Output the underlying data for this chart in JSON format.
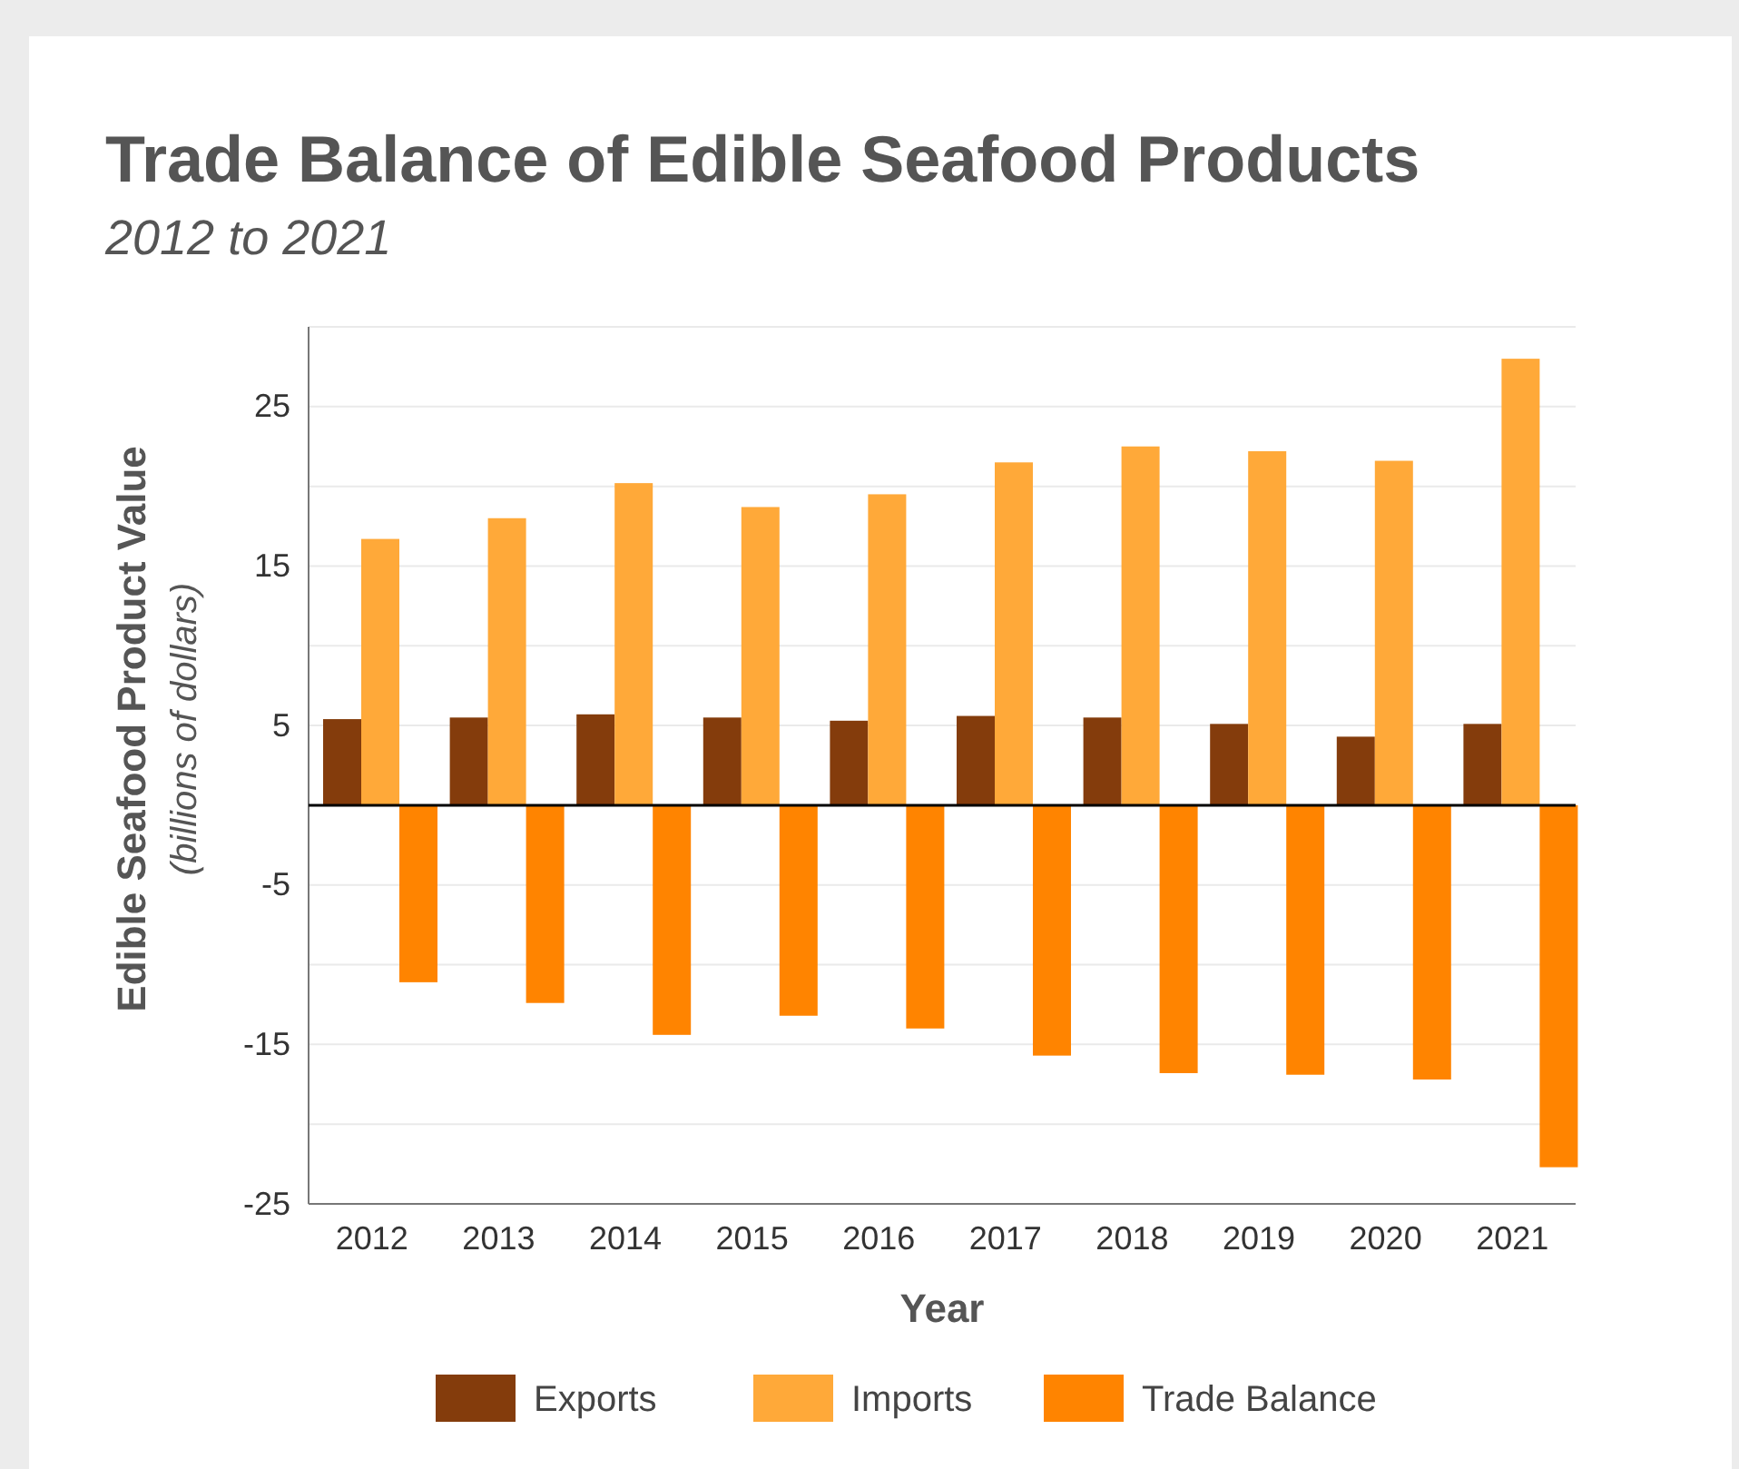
{
  "chart_data": {
    "type": "bar",
    "title": "Trade Balance of Edible Seafood Products",
    "subtitle": "2012 to 2021",
    "xlabel": "Year",
    "ylabel": "Edible Seafood Product Value",
    "y2label": "(billions of dollars)",
    "categories": [
      "2012",
      "2013",
      "2014",
      "2015",
      "2016",
      "2017",
      "2018",
      "2019",
      "2020",
      "2021"
    ],
    "series": [
      {
        "name": "Exports",
        "color": "#843c0c",
        "values": [
          5.4,
          5.5,
          5.7,
          5.5,
          5.3,
          5.6,
          5.5,
          5.1,
          4.3,
          5.1
        ]
      },
      {
        "name": "Imports",
        "color": "#ffa939",
        "values": [
          16.7,
          18.0,
          20.2,
          18.7,
          19.5,
          21.5,
          22.5,
          22.2,
          21.6,
          28.0
        ]
      },
      {
        "name": "Trade Balance",
        "color": "#ff8400",
        "values": [
          -11.1,
          -12.4,
          -14.4,
          -13.2,
          -14.0,
          -15.7,
          -16.8,
          -16.9,
          -17.2,
          -22.7
        ]
      }
    ],
    "ylim": [
      -25,
      30
    ],
    "yticks": [
      -25,
      {
        "value": -20,
        "label": null
      },
      -15,
      {
        "value": -10,
        "label": null
      },
      -5,
      {
        "value": 0,
        "label": null
      },
      5,
      {
        "value": 10,
        "label": null
      },
      15,
      {
        "value": 20,
        "label": null
      },
      25,
      {
        "value": 30,
        "label": null
      }
    ],
    "grid": "y",
    "legend": "bottom"
  }
}
